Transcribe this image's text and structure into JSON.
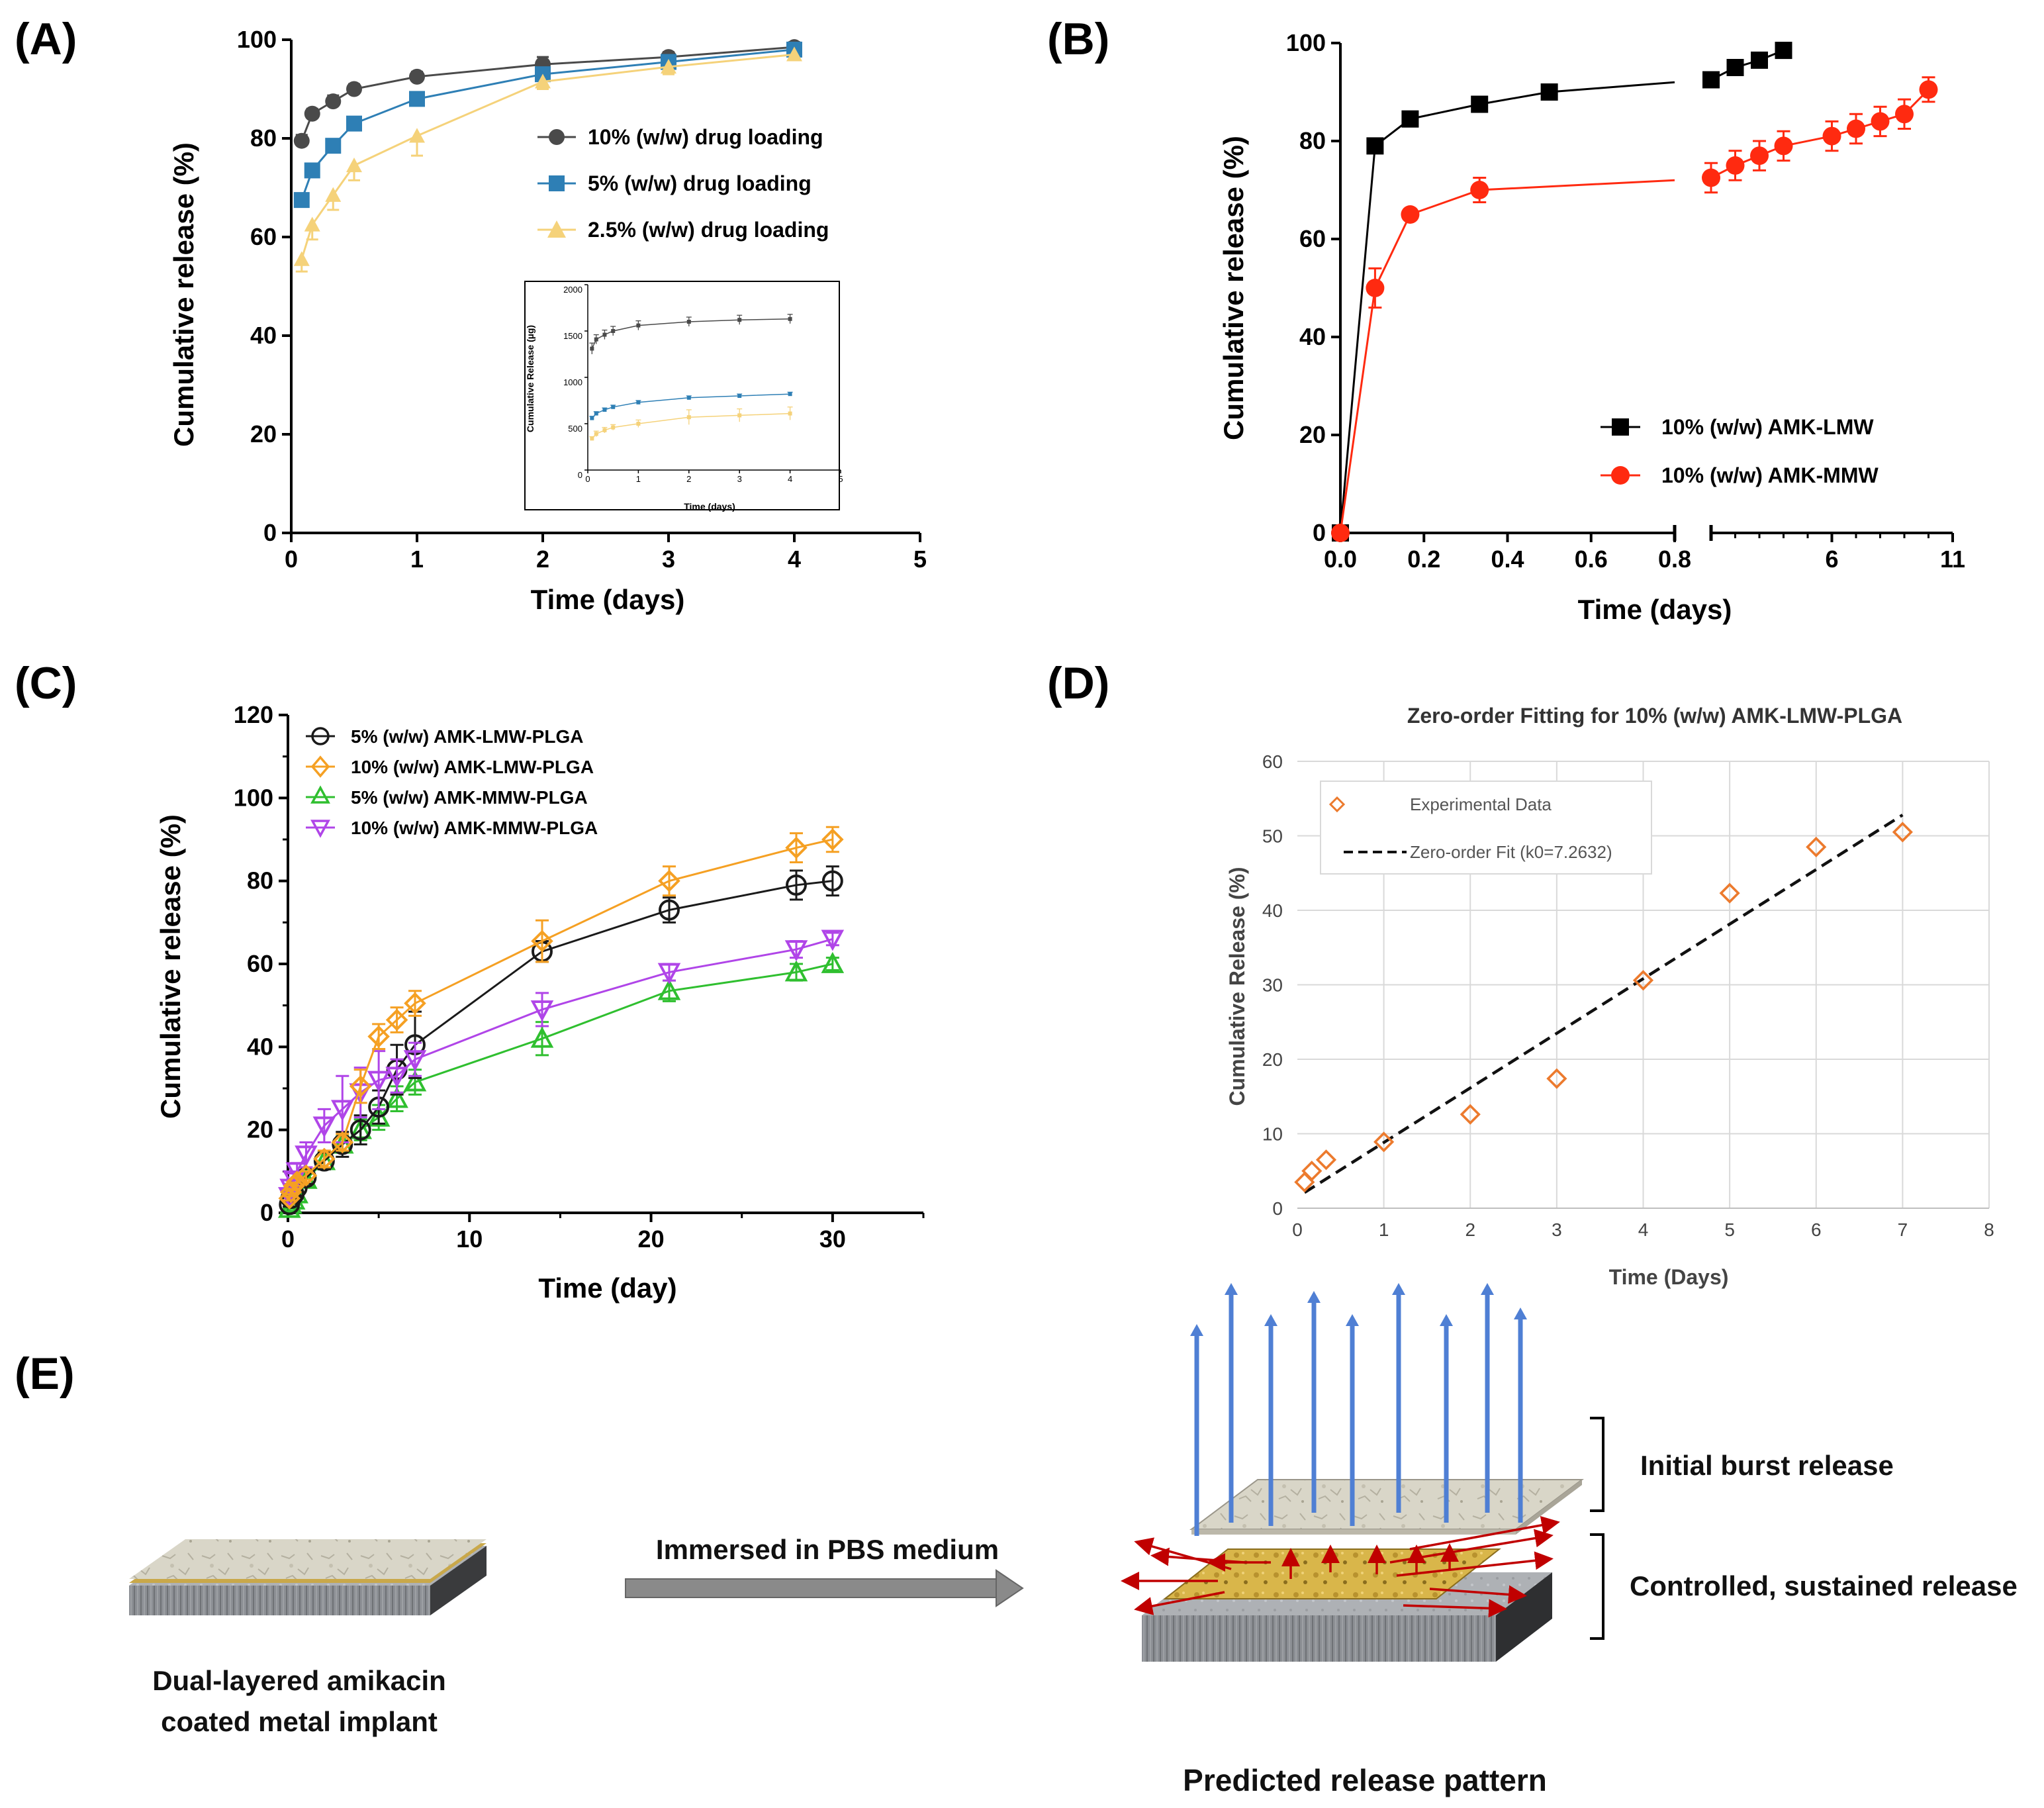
{
  "panels": {
    "A": "(A)",
    "B": "(B)",
    "C": "(C)",
    "D": "(D)",
    "E": "(E)"
  },
  "colors": {
    "c10": "#4a4a4a",
    "c5": "#2e7fb5",
    "c25": "#f5d27a",
    "lmw": "#000000",
    "mmw": "#ff2a10",
    "orange": "#f5a023",
    "green": "#2fbf2f",
    "purple": "#b045e8",
    "black": "#1a1a1a",
    "dOrange": "#ec7a2d",
    "blueArrow": "#4f7fd4",
    "redArrow": "#c00000"
  },
  "chart_data": [
    {
      "id": "A",
      "type": "line",
      "xlabel": "Time (days)",
      "ylabel": "Cumulative release (%)",
      "xlim": [
        0,
        5
      ],
      "ylim": [
        0,
        100
      ],
      "xticks": [
        0,
        1,
        2,
        3,
        4,
        5
      ],
      "yticks": [
        0,
        20,
        40,
        60,
        80,
        100
      ],
      "series": [
        {
          "name": "10% (w/w) drug loading",
          "color": "#4a4a4a",
          "marker": "circle",
          "x": [
            0.083,
            0.167,
            0.333,
            0.5,
            1,
            2,
            3,
            4
          ],
          "y": [
            79.5,
            85,
            87.5,
            90,
            92.5,
            95,
            96.5,
            98.5
          ],
          "err": [
            1.2,
            1,
            1.2,
            1,
            1,
            1.5,
            1,
            1
          ]
        },
        {
          "name": "5% (w/w) drug loading",
          "color": "#2e7fb5",
          "marker": "square",
          "x": [
            0.083,
            0.167,
            0.333,
            0.5,
            1,
            2,
            3,
            4
          ],
          "y": [
            67.5,
            73.5,
            78.5,
            83,
            88,
            93,
            95.5,
            98
          ],
          "err": [
            1.2,
            1,
            1.2,
            1,
            1,
            1,
            1,
            1
          ]
        },
        {
          "name": "2.5% (w/w) drug loading",
          "color": "#f5d27a",
          "marker": "triangle",
          "x": [
            0.083,
            0.167,
            0.333,
            0.5,
            1,
            2,
            3,
            4
          ],
          "y": [
            55.5,
            62.5,
            68.5,
            74.5,
            80.5,
            91.5,
            94.5,
            97
          ],
          "err": [
            2.5,
            3,
            3,
            3,
            4,
            1.5,
            1.5,
            1
          ]
        }
      ],
      "inset": {
        "type": "line",
        "xlabel": "Time (days)",
        "ylabel": "Cumulative Release (µg)",
        "xlim": [
          0,
          5
        ],
        "ylim": [
          0,
          2000
        ],
        "xticks": [
          0,
          1,
          2,
          3,
          4,
          5
        ],
        "yticks": [
          0,
          500,
          1000,
          1500,
          2000
        ],
        "series": [
          {
            "name": "10%",
            "color": "#4a4a4a",
            "x": [
              0.083,
              0.167,
              0.333,
              0.5,
              1,
              2,
              3,
              4
            ],
            "y": [
              1310,
              1410,
              1460,
              1500,
              1560,
              1600,
              1620,
              1630
            ],
            "err": [
              60,
              50,
              50,
              50,
              50,
              50,
              50,
              50
            ]
          },
          {
            "name": "5%",
            "color": "#2e7fb5",
            "x": [
              0.083,
              0.167,
              0.333,
              0.5,
              1,
              2,
              3,
              4
            ],
            "y": [
              560,
              610,
              650,
              680,
              730,
              780,
              800,
              820
            ],
            "err": [
              20,
              20,
              20,
              20,
              20,
              20,
              20,
              20
            ]
          },
          {
            "name": "2.5%",
            "color": "#f5d27a",
            "x": [
              0.083,
              0.167,
              0.333,
              0.5,
              1,
              2,
              3,
              4
            ],
            "y": [
              340,
              390,
              430,
              460,
              500,
              570,
              590,
              610
            ],
            "err": [
              20,
              30,
              30,
              30,
              40,
              80,
              70,
              70
            ]
          }
        ]
      }
    },
    {
      "id": "B",
      "type": "line",
      "xlabel": "Time (days)",
      "ylabel": "Cumulative release (%)",
      "xlim_segment1": [
        0,
        0.8
      ],
      "xlim_segment2": [
        1,
        11
      ],
      "ylim": [
        0,
        100
      ],
      "xticks1": [
        "0.0",
        "0.2",
        "0.4",
        "0.6",
        "0.8"
      ],
      "xticks2": [
        "6",
        "11"
      ],
      "yticks": [
        0,
        20,
        40,
        60,
        80,
        100
      ],
      "series": [
        {
          "name": "10% (w/w) AMK-LMW",
          "color": "#000000",
          "marker": "square",
          "x": [
            0,
            0.083,
            0.167,
            0.333,
            0.5,
            1,
            2,
            3,
            4
          ],
          "y": [
            0,
            79,
            84.5,
            87.5,
            90,
            92.5,
            95,
            96.5,
            98.5
          ],
          "err": [
            0,
            1,
            1,
            1,
            1,
            1,
            1,
            1,
            1
          ]
        },
        {
          "name": "10% (w/w) AMK-MMW",
          "color": "#ff2a10",
          "marker": "circle",
          "x": [
            0,
            0.083,
            0.167,
            0.333,
            1,
            2,
            3,
            4,
            6,
            7,
            8,
            9,
            10
          ],
          "y": [
            0,
            50,
            65,
            70,
            72.5,
            75,
            77,
            79,
            81,
            82.5,
            84,
            85.5,
            90.5
          ],
          "err": [
            0,
            4,
            1,
            2.5,
            3,
            3,
            3,
            3,
            3,
            3,
            3,
            3,
            2.5
          ]
        }
      ]
    },
    {
      "id": "C",
      "type": "line",
      "xlabel": "Time (day)",
      "ylabel": "Cumulative release (%)",
      "xlim": [
        0,
        35
      ],
      "ylim": [
        0,
        120
      ],
      "xticks": [
        0,
        10,
        20,
        30
      ],
      "yticks": [
        0,
        20,
        40,
        60,
        80,
        100,
        120
      ],
      "series": [
        {
          "name": "5% (w/w) AMK-LMW-PLGA",
          "color": "#1a1a1a",
          "marker": "circle",
          "x": [
            0.083,
            0.167,
            0.333,
            0.5,
            1,
            2,
            3,
            4,
            5,
            6,
            7,
            14,
            21,
            28,
            30
          ],
          "y": [
            2,
            3.5,
            4.5,
            6,
            8.5,
            12.5,
            16.5,
            20,
            25.5,
            34.5,
            40.5,
            63,
            73,
            79,
            80
          ],
          "err": [
            0.5,
            0.5,
            0.8,
            1,
            1.5,
            2,
            3,
            3.5,
            4,
            6,
            8,
            2.5,
            3,
            3.5,
            3.5
          ]
        },
        {
          "name": "10% (w/w) AMK-LMW-PLGA",
          "color": "#f5a023",
          "marker": "diamond",
          "x": [
            0.083,
            0.167,
            0.333,
            0.5,
            1,
            2,
            3,
            4,
            5,
            6,
            7,
            14,
            21,
            28,
            30
          ],
          "y": [
            3.5,
            5,
            6.5,
            7.5,
            9,
            13,
            17,
            30.5,
            42.5,
            46.5,
            50.5,
            65.5,
            80,
            88,
            90
          ],
          "err": [
            0.5,
            0.5,
            0.8,
            1,
            1,
            2,
            2,
            4,
            3,
            3,
            3,
            5,
            3.5,
            3.5,
            3
          ]
        },
        {
          "name": "5% (w/w) AMK-MMW-PLGA",
          "color": "#2fbf2f",
          "marker": "triangle",
          "x": [
            0.083,
            0.167,
            0.333,
            0.5,
            1,
            2,
            3,
            4,
            5,
            6,
            7,
            14,
            21,
            28,
            30
          ],
          "y": [
            1,
            2,
            3,
            4.5,
            8,
            12.5,
            16.5,
            20,
            23,
            27.5,
            31.5,
            42,
            53.5,
            58,
            60
          ],
          "err": [
            0.5,
            0.5,
            0.8,
            1,
            1.5,
            2,
            2,
            2.5,
            3,
            3,
            3,
            4,
            2.5,
            2,
            1.5
          ]
        },
        {
          "name": "10% (w/w) AMK-MMW-PLGA",
          "color": "#b045e8",
          "marker": "invtriangle",
          "x": [
            0.083,
            0.167,
            0.333,
            0.5,
            1,
            2,
            3,
            4,
            5,
            6,
            7,
            14,
            21,
            28,
            30
          ],
          "y": [
            4,
            6,
            8,
            10,
            14,
            21,
            25,
            29,
            32,
            33,
            37,
            49,
            58,
            63.5,
            66
          ],
          "err": [
            1,
            1,
            1.5,
            2,
            3,
            4,
            8,
            6,
            7,
            4,
            4,
            4,
            2,
            2,
            1.5
          ]
        }
      ]
    },
    {
      "id": "D",
      "type": "scatter",
      "title": "Zero-order Fitting for 10% (w/w) AMK-LMW-PLGA",
      "xlabel": "Time (Days)",
      "ylabel": "Cumulative Release (%)",
      "xlim": [
        0,
        8
      ],
      "ylim": [
        0,
        60
      ],
      "xticks": [
        0,
        1,
        2,
        3,
        4,
        5,
        6,
        7,
        8
      ],
      "yticks": [
        0,
        10,
        20,
        30,
        40,
        50,
        60
      ],
      "series": [
        {
          "name": "Experimental Data",
          "color": "#ec7a2d",
          "marker": "diamond",
          "x": [
            0.083,
            0.167,
            0.333,
            1,
            2,
            3,
            4,
            5,
            6,
            7
          ],
          "y": [
            3.5,
            5,
            6.5,
            8.9,
            12.6,
            17.4,
            30.6,
            42.3,
            48.5,
            50.5
          ]
        },
        {
          "name": "Zero-order Fit (k0=7.2632)",
          "color": "#111111",
          "style": "dashed",
          "x": [
            0.083,
            7
          ],
          "y": [
            2.1,
            52.8
          ]
        }
      ]
    }
  ],
  "schematic": {
    "arrow_label": "Immersed in PBS medium",
    "implant_caption_line1": "Dual-layered amikacin",
    "implant_caption_line2": "coated metal implant",
    "burst_label": "Initial burst release",
    "sustained_label": "Controlled, sustained release",
    "pattern_caption": "Predicted release pattern"
  }
}
